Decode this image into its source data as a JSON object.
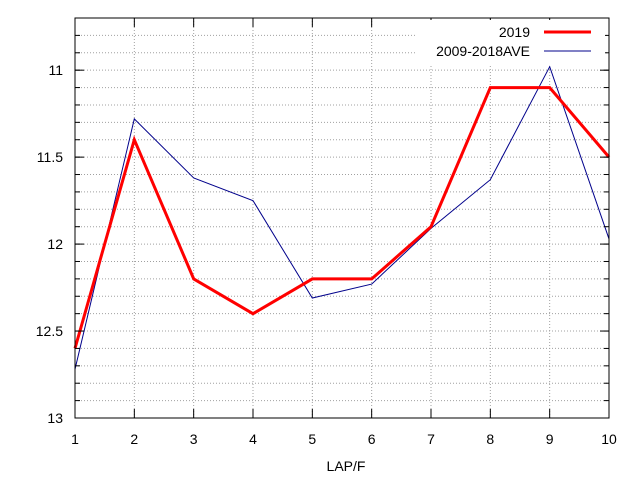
{
  "chart_data": {
    "type": "line",
    "title": "",
    "xlabel": "LAP/F",
    "ylabel": "",
    "x": [
      1,
      2,
      3,
      4,
      5,
      6,
      7,
      8,
      9,
      10
    ],
    "xlim": [
      1,
      10
    ],
    "ylim": [
      10.7,
      13.0
    ],
    "y_inverted": true,
    "x_ticks": [
      1,
      2,
      3,
      4,
      5,
      6,
      7,
      8,
      9,
      10
    ],
    "x_tick_labels": [
      "1",
      "2",
      "3",
      "4",
      "5",
      "6",
      "7",
      "8",
      "9",
      "10"
    ],
    "y_ticks": [
      11.0,
      11.5,
      12.0,
      12.5,
      13.0
    ],
    "y_tick_labels": [
      "11",
      "11.5",
      "12",
      "12.5",
      "13"
    ],
    "grid": true,
    "legend_position": "top-right",
    "series": [
      {
        "name": "2019",
        "color": "#ff0000",
        "values": [
          12.6,
          11.4,
          12.2,
          12.4,
          12.2,
          12.2,
          11.9,
          11.1,
          11.1,
          11.5
        ]
      },
      {
        "name": "2009-2018AVE",
        "color": "#00008b",
        "values": [
          12.72,
          11.28,
          11.62,
          11.75,
          12.31,
          12.23,
          11.91,
          11.63,
          10.98,
          11.97
        ]
      }
    ]
  }
}
